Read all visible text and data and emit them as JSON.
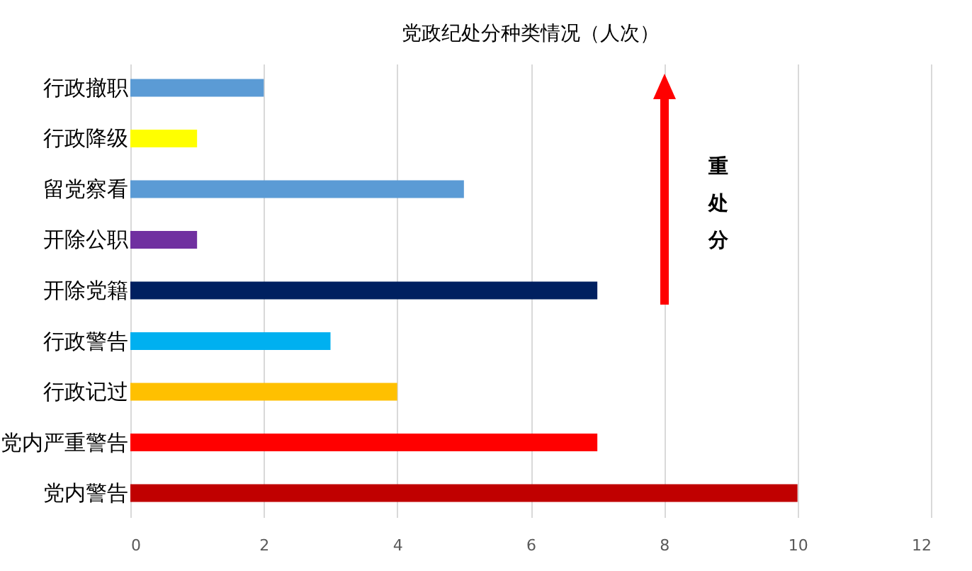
{
  "chart_data": {
    "type": "bar",
    "orientation": "horizontal",
    "title": "党政纪处分种类情况（人次）",
    "categories": [
      "行政撤职",
      "行政降级",
      "留党察看",
      "开除公职",
      "开除党籍",
      "行政警告",
      "行政记过",
      "党内严重警告",
      "党内警告"
    ],
    "values": [
      2,
      1,
      5,
      1,
      7,
      3,
      4,
      7,
      10
    ],
    "colors": [
      "#5b9bd5",
      "#ffff00",
      "#5b9bd5",
      "#7030a0",
      "#002060",
      "#00b0f0",
      "#ffc000",
      "#ff0000",
      "#c00000"
    ],
    "xlim": [
      0,
      12
    ],
    "xticks": [
      0,
      2,
      4,
      6,
      8,
      10,
      12
    ],
    "grid": "x",
    "annotations": [
      "重处分"
    ]
  }
}
